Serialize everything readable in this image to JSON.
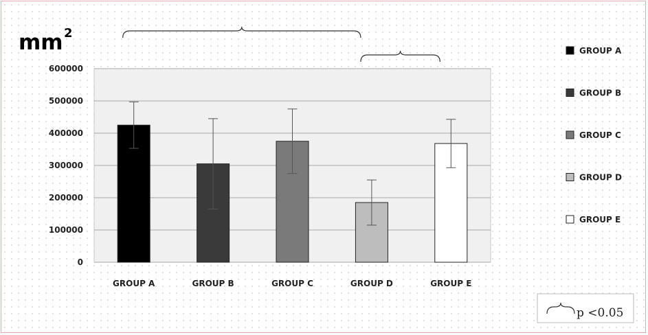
{
  "chart_data": {
    "type": "bar",
    "unit_label": "mm",
    "unit_exponent": "2",
    "categories": [
      "GROUP A",
      "GROUP B",
      "GROUP C",
      "GROUP D",
      "GROUP E"
    ],
    "values": [
      425000,
      305000,
      375000,
      185000,
      368000
    ],
    "error": [
      72000,
      140000,
      100000,
      70000,
      75000
    ],
    "colors": [
      "#000000",
      "#3a3a3a",
      "#7a7a7a",
      "#bdbdbd",
      "#ffffff"
    ],
    "legend": [
      "GROUP A",
      "GROUP B",
      "GROUP C",
      "GROUP D",
      "GROUP E"
    ],
    "legend_position": "right",
    "yticks": [
      "0",
      "100000",
      "200000",
      "300000",
      "400000",
      "500000",
      "600000"
    ],
    "ylim": [
      0,
      600000
    ],
    "grid": true,
    "significance_brackets": [
      {
        "from": "GROUP A",
        "to": "GROUP D"
      },
      {
        "from": "GROUP D",
        "to": "GROUP E"
      }
    ],
    "significance_note": "p <0.05"
  }
}
